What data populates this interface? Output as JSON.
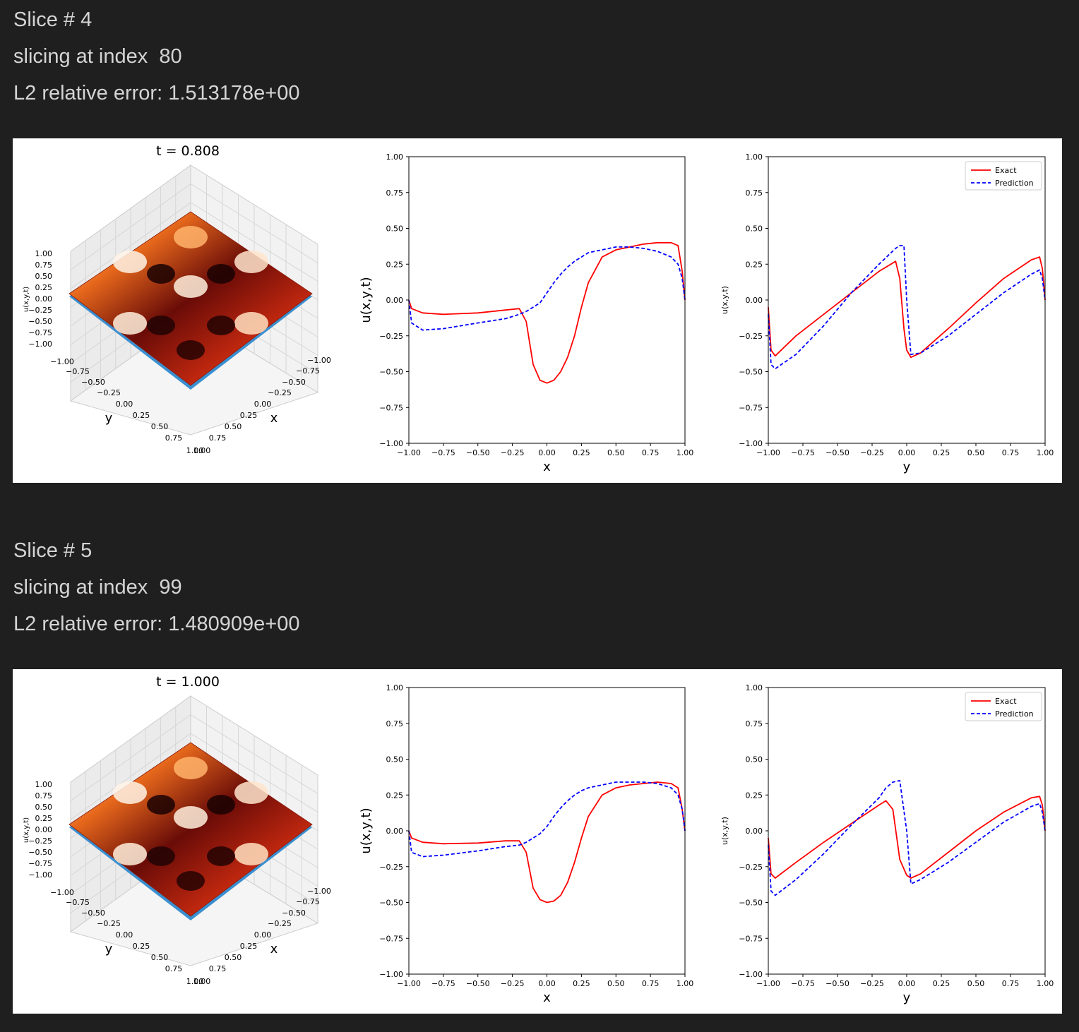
{
  "slices": [
    {
      "header": "Slice # 4",
      "index_line": "slicing at index  80",
      "error_line": "L2 relative error: 1.513178e+00",
      "plot_title": "t = 0.808"
    },
    {
      "header": "Slice # 5",
      "index_line": "slicing at index  99",
      "error_line": "L2 relative error: 1.480909e+00",
      "plot_title": "t = 1.000"
    }
  ],
  "axes": {
    "z_label_3d": "u(x,y,t)",
    "x_label": "x",
    "y_label": "y",
    "u_label": "u(x,y,t)",
    "ticks": [
      "-1.00",
      "-0.75",
      "-0.50",
      "-0.25",
      "0.00",
      "0.25",
      "0.50",
      "0.75",
      "1.00"
    ]
  },
  "legend": {
    "exact": "Exact",
    "prediction": "Prediction"
  },
  "colors": {
    "exact": "#ff0000",
    "prediction": "#0000ff",
    "surface_edge": "#3a8fd0"
  },
  "chart_data": [
    {
      "type": "line",
      "slice": 4,
      "xlabel": "x",
      "ylabel": "u(x,y,t)",
      "xlim": [
        -1,
        1
      ],
      "ylim": [
        -1,
        1
      ],
      "x": [
        -1.0,
        -0.98,
        -0.9,
        -0.75,
        -0.5,
        -0.3,
        -0.2,
        -0.15,
        -0.1,
        -0.05,
        0.0,
        0.05,
        0.1,
        0.15,
        0.2,
        0.25,
        0.3,
        0.4,
        0.5,
        0.6,
        0.7,
        0.8,
        0.9,
        0.95,
        0.98,
        1.0
      ],
      "series": [
        {
          "name": "Exact",
          "values": [
            0.0,
            -0.06,
            -0.09,
            -0.1,
            -0.09,
            -0.07,
            -0.06,
            -0.15,
            -0.45,
            -0.56,
            -0.58,
            -0.56,
            -0.5,
            -0.4,
            -0.25,
            -0.05,
            0.12,
            0.3,
            0.35,
            0.37,
            0.39,
            0.4,
            0.4,
            0.38,
            0.2,
            0.0
          ]
        },
        {
          "name": "Prediction",
          "values": [
            0.0,
            -0.16,
            -0.21,
            -0.2,
            -0.16,
            -0.13,
            -0.1,
            -0.08,
            -0.05,
            -0.02,
            0.05,
            0.12,
            0.18,
            0.23,
            0.27,
            0.3,
            0.33,
            0.35,
            0.37,
            0.37,
            0.36,
            0.34,
            0.3,
            0.25,
            0.15,
            0.0
          ]
        }
      ]
    },
    {
      "type": "line",
      "slice": 4,
      "xlabel": "y",
      "ylabel": "u(x,y,t)",
      "xlim": [
        -1,
        1
      ],
      "ylim": [
        -1,
        1
      ],
      "x": [
        -1.0,
        -0.98,
        -0.95,
        -0.8,
        -0.6,
        -0.4,
        -0.2,
        -0.08,
        -0.05,
        -0.02,
        0.0,
        0.03,
        0.1,
        0.3,
        0.5,
        0.7,
        0.9,
        0.96,
        0.98,
        1.0
      ],
      "series": [
        {
          "name": "Exact",
          "values": [
            -0.05,
            -0.35,
            -0.39,
            -0.25,
            -0.1,
            0.05,
            0.2,
            0.27,
            0.15,
            -0.2,
            -0.35,
            -0.4,
            -0.37,
            -0.2,
            -0.02,
            0.15,
            0.28,
            0.3,
            0.22,
            0.0
          ]
        },
        {
          "name": "Prediction",
          "values": [
            -0.1,
            -0.45,
            -0.48,
            -0.38,
            -0.18,
            0.05,
            0.25,
            0.36,
            0.38,
            0.38,
            0.0,
            -0.38,
            -0.37,
            -0.25,
            -0.1,
            0.05,
            0.18,
            0.21,
            0.15,
            0.0
          ]
        }
      ]
    },
    {
      "type": "line",
      "slice": 5,
      "xlabel": "x",
      "ylabel": "u(x,y,t)",
      "xlim": [
        -1,
        1
      ],
      "ylim": [
        -1,
        1
      ],
      "x": [
        -1.0,
        -0.98,
        -0.9,
        -0.75,
        -0.5,
        -0.3,
        -0.2,
        -0.15,
        -0.1,
        -0.05,
        0.0,
        0.05,
        0.1,
        0.15,
        0.2,
        0.25,
        0.3,
        0.4,
        0.5,
        0.6,
        0.7,
        0.8,
        0.9,
        0.95,
        0.98,
        1.0
      ],
      "series": [
        {
          "name": "Exact",
          "values": [
            0.0,
            -0.05,
            -0.08,
            -0.09,
            -0.085,
            -0.07,
            -0.07,
            -0.15,
            -0.4,
            -0.48,
            -0.5,
            -0.49,
            -0.45,
            -0.36,
            -0.22,
            -0.05,
            0.1,
            0.25,
            0.3,
            0.32,
            0.33,
            0.34,
            0.33,
            0.3,
            0.15,
            0.0
          ]
        },
        {
          "name": "Prediction",
          "values": [
            0.0,
            -0.15,
            -0.18,
            -0.17,
            -0.14,
            -0.11,
            -0.1,
            -0.08,
            -0.05,
            -0.02,
            0.03,
            0.1,
            0.16,
            0.21,
            0.25,
            0.28,
            0.3,
            0.32,
            0.34,
            0.34,
            0.34,
            0.33,
            0.3,
            0.25,
            0.15,
            0.0
          ]
        }
      ]
    },
    {
      "type": "line",
      "slice": 5,
      "xlabel": "y",
      "ylabel": "u(x,y,t)",
      "xlim": [
        -1,
        1
      ],
      "ylim": [
        -1,
        1
      ],
      "x": [
        -1.0,
        -0.98,
        -0.95,
        -0.8,
        -0.6,
        -0.4,
        -0.2,
        -0.15,
        -0.1,
        -0.05,
        0.0,
        0.03,
        0.1,
        0.3,
        0.5,
        0.7,
        0.9,
        0.96,
        0.98,
        1.0
      ],
      "series": [
        {
          "name": "Exact",
          "values": [
            -0.05,
            -0.3,
            -0.33,
            -0.22,
            -0.08,
            0.05,
            0.18,
            0.21,
            0.15,
            -0.2,
            -0.31,
            -0.33,
            -0.3,
            -0.15,
            0.0,
            0.13,
            0.23,
            0.24,
            0.18,
            0.0
          ]
        },
        {
          "name": "Prediction",
          "values": [
            -0.1,
            -0.42,
            -0.45,
            -0.34,
            -0.16,
            0.04,
            0.23,
            0.3,
            0.34,
            0.35,
            0.0,
            -0.37,
            -0.34,
            -0.22,
            -0.08,
            0.06,
            0.17,
            0.19,
            0.13,
            0.0
          ]
        }
      ]
    }
  ]
}
